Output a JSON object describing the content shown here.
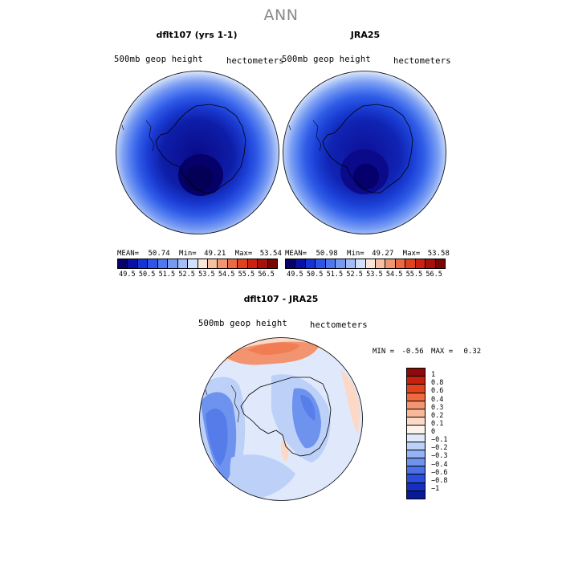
{
  "title": "ANN",
  "panels": {
    "left": {
      "title": "dflt107 (yrs 1-1)",
      "variable": "500mb geop height",
      "units": "hectometers",
      "stats": {
        "mean_label": "MEAN=",
        "mean": "50.74",
        "min_label": "Min=",
        "min": "49.21",
        "max_label": "Max=",
        "max": "53.54"
      }
    },
    "right": {
      "title": "JRA25",
      "variable": "500mb geop height",
      "units": "hectometers",
      "stats": {
        "mean_label": "MEAN=",
        "mean": "50.98",
        "min_label": "Min=",
        "min": "49.27",
        "max_label": "Max=",
        "max": "53.58"
      }
    },
    "diff": {
      "title": "dflt107 - JRA25",
      "variable": "500mb geop height",
      "units": "hectometers",
      "stats": {
        "min_label": "MIN =",
        "min": "-0.56",
        "max_label": "MAX =",
        "max": "0.32"
      }
    }
  },
  "colorbar_abs": {
    "labels": [
      "49.5",
      "50.5",
      "51.5",
      "52.5",
      "53.5",
      "54.5",
      "55.5",
      "56.5"
    ],
    "colors": [
      "#08006b",
      "#0a10a6",
      "#1633d6",
      "#2f55e8",
      "#4f78f0",
      "#7799f2",
      "#a5bdf6",
      "#d2e0fb",
      "#fbe6d9",
      "#f6c0a3",
      "#f09672",
      "#ea6a45",
      "#e0411f",
      "#cc2011",
      "#a8100a",
      "#7a0505"
    ]
  },
  "colorbar_diff": {
    "labels": [
      "1",
      "0.8",
      "0.6",
      "0.4",
      "0.3",
      "0.2",
      "0.1",
      "0",
      "−0.1",
      "−0.2",
      "−0.3",
      "−0.4",
      "−0.6",
      "−0.8",
      "−1"
    ],
    "colors": [
      "#8c0a0a",
      "#c8200f",
      "#e2431e",
      "#ee6a40",
      "#f39470",
      "#f7b99a",
      "#fbd9c6",
      "#fdf2e8",
      "#dfe9fb",
      "#bcd0f8",
      "#94b3f3",
      "#6d93ee",
      "#4a70e6",
      "#2a4ddc",
      "#1530c0",
      "#081a98"
    ]
  }
}
